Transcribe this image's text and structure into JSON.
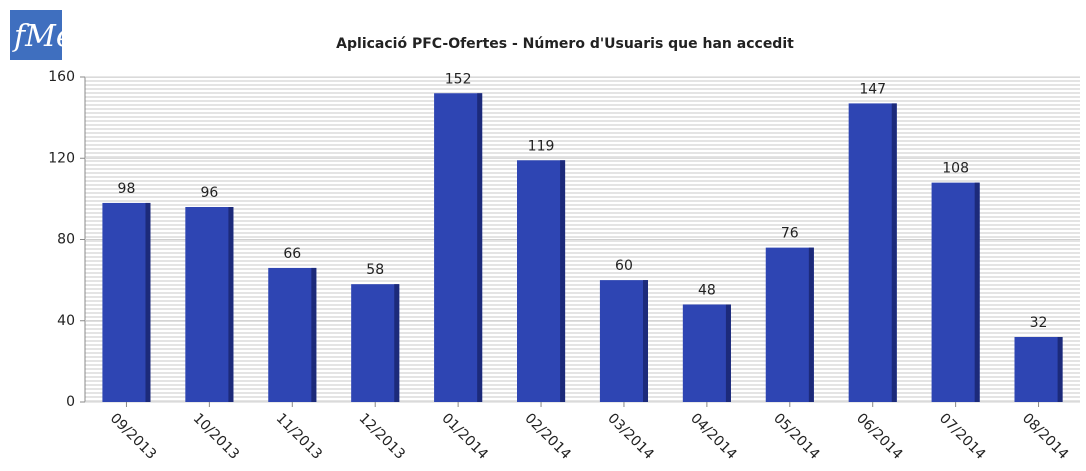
{
  "logo_text": "fMe",
  "chart_data": {
    "type": "bar",
    "title": "Aplicació PFC-Ofertes  - Número d'Usuaris que han accedit",
    "categories": [
      "09/2013",
      "10/2013",
      "11/2013",
      "12/2013",
      "01/2014",
      "02/2014",
      "03/2014",
      "04/2014",
      "05/2014",
      "06/2014",
      "07/2014",
      "08/2014"
    ],
    "values": [
      98,
      96,
      66,
      58,
      152,
      119,
      60,
      48,
      76,
      147,
      108,
      32
    ],
    "color": "#2e45b3",
    "ylim": [
      0,
      160
    ],
    "yticks": [
      0,
      40,
      80,
      120,
      160
    ],
    "grid": true
  }
}
